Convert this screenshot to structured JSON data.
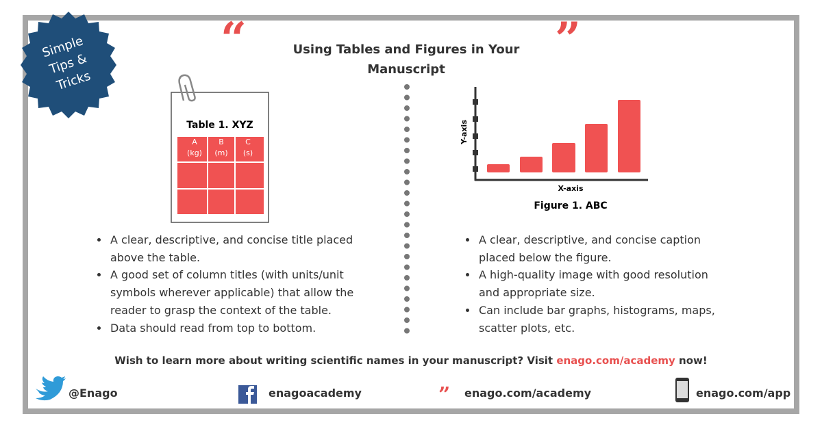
{
  "badge": {
    "lines": [
      "Simple",
      "Tips &",
      "Tricks"
    ]
  },
  "title": "Using Tables and Figures in Your Manuscript",
  "table_illustration": {
    "title": "Table 1. XYZ",
    "headers": [
      {
        "name": "A",
        "unit": "(kg)"
      },
      {
        "name": "B",
        "unit": "(m)"
      },
      {
        "name": "C",
        "unit": "(s)"
      }
    ]
  },
  "figure_illustration": {
    "y_label": "Y-axis",
    "x_label": "X-axis",
    "caption": "Figure 1. ABC"
  },
  "left_bullets": [
    "A clear, descriptive, and concise title placed above the table.",
    "A good set of column titles (with units/unit symbols wherever applicable) that allow the reader to grasp the context of the table.",
    "Data should read from top to bottom."
  ],
  "right_bullets": [
    "A clear, descriptive, and concise caption placed below the figure.",
    "A high-quality image with good resolution and appropriate size.",
    "Can include bar graphs, histograms, maps, scatter plots, etc."
  ],
  "footer": {
    "text": "Wish to learn more about writing scientific names in your manuscript? Visit",
    "link": "enago.com/academy",
    "end": "now!"
  },
  "social": {
    "twitter": "@Enago",
    "facebook": "enagoacademy",
    "website": "enago.com/academy",
    "app": "enago.com/app"
  }
}
